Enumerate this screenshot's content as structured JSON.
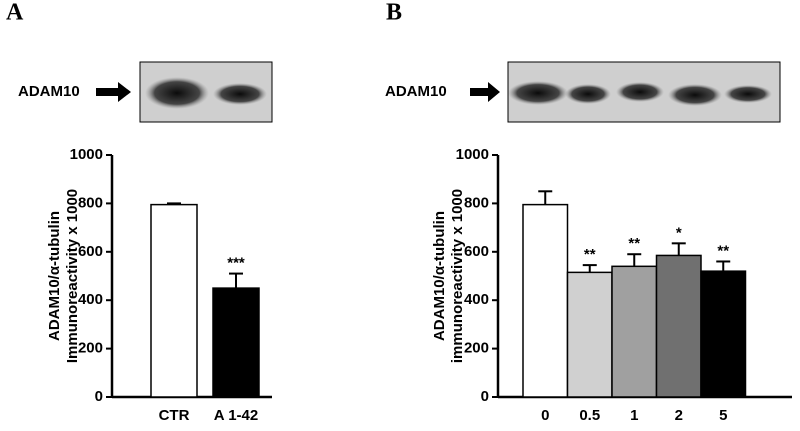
{
  "chart_data": [
    {
      "type": "bar",
      "panel_label": "A",
      "blot_label": "ADAM10",
      "ylabel": [
        "ADAM10/α-tubulin",
        "Immunoreactivity x 1000"
      ],
      "categories": [
        "CTR",
        "A 1-42"
      ],
      "series": [
        {
          "values": [
            795,
            450
          ],
          "errors": [
            5,
            60
          ],
          "colors": [
            "#ffffff",
            "#000000"
          ],
          "significance": [
            null,
            "***"
          ]
        }
      ],
      "ylim": [
        0,
        1000
      ],
      "yticks": [
        0,
        200,
        400,
        600,
        800,
        1000
      ]
    },
    {
      "type": "bar",
      "panel_label": "B",
      "blot_label": "ADAM10",
      "ylabel": [
        "ADAM10/α-tubulin",
        "immunoreactivity x 1000"
      ],
      "categories": [
        "0",
        "0.5",
        "1",
        "2",
        "5"
      ],
      "series": [
        {
          "values": [
            795,
            515,
            540,
            585,
            520
          ],
          "errors": [
            55,
            30,
            50,
            50,
            40
          ],
          "colors": [
            "#ffffff",
            "#d0d0d0",
            "#a0a0a0",
            "#707070",
            "#000000"
          ],
          "significance": [
            null,
            "**",
            "**",
            "*",
            "**"
          ]
        }
      ],
      "ylim": [
        0,
        1000
      ],
      "yticks": [
        0,
        200,
        400,
        600,
        800,
        1000
      ]
    }
  ]
}
